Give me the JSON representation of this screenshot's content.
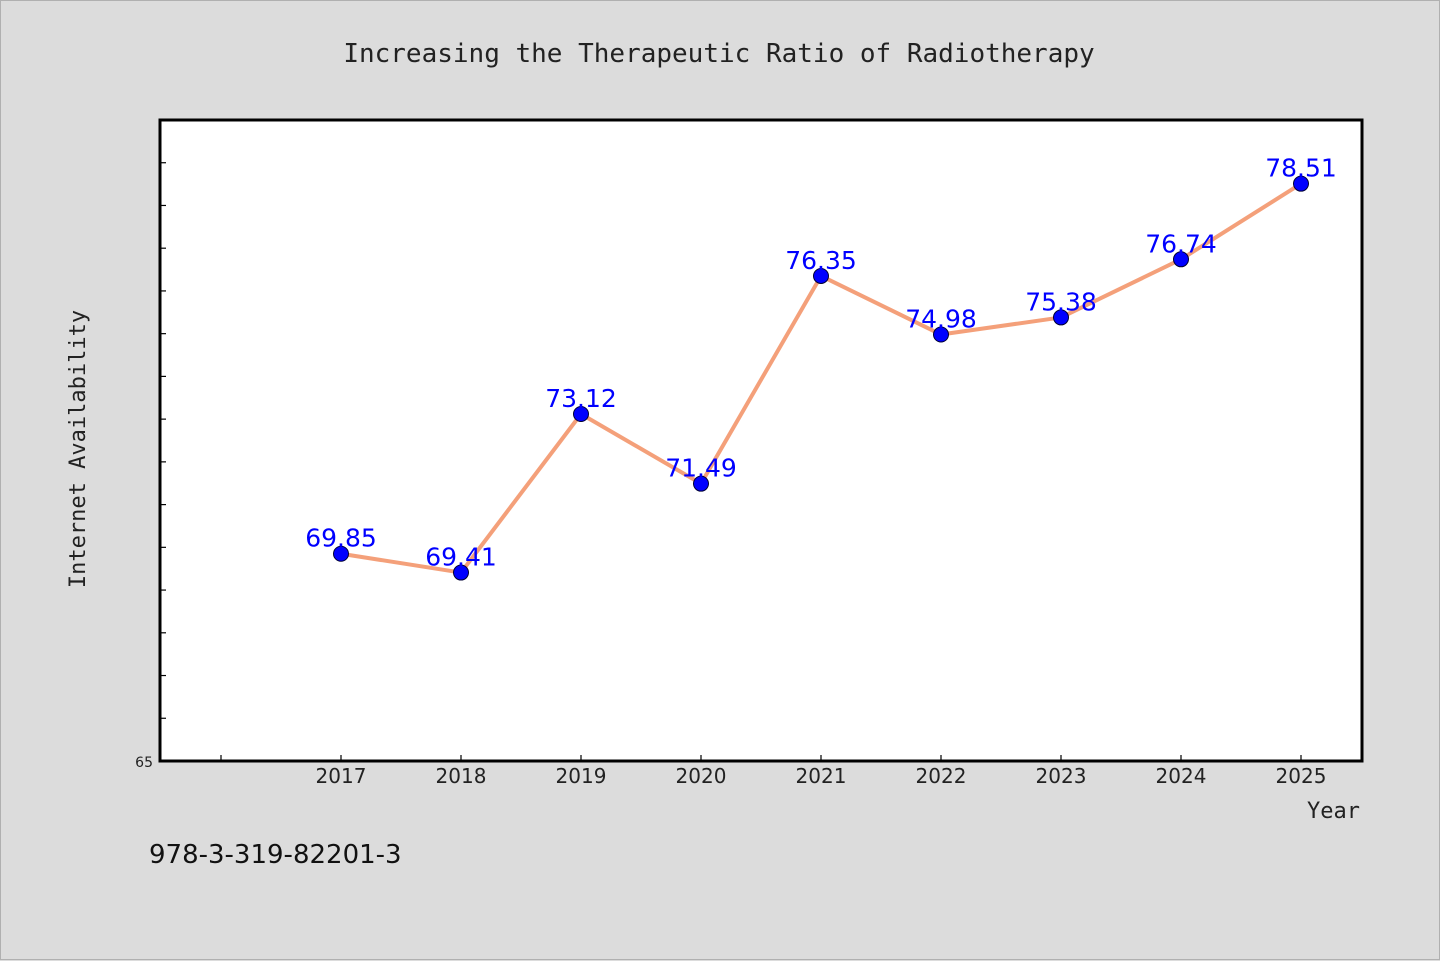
{
  "chart_data": {
    "type": "line",
    "title": "Increasing the Therapeutic Ratio of Radiotherapy",
    "xlabel": "Year",
    "ylabel": "Internet Availability",
    "categories": [
      "2017",
      "2018",
      "2019",
      "2020",
      "2021",
      "2022",
      "2023",
      "2024",
      "2025"
    ],
    "values": [
      69.85,
      69.41,
      73.12,
      71.49,
      76.35,
      74.98,
      75.38,
      76.74,
      78.51
    ],
    "data_labels": [
      "69.85",
      "69.41",
      "73.12",
      "71.49",
      "76.35",
      "74.98",
      "75.38",
      "76.74",
      "78.51"
    ],
    "ylim": [
      65,
      80
    ],
    "ytick_labels": [
      "65"
    ],
    "grid": false,
    "legend": "none",
    "colors": {
      "line": "#f4a07a",
      "marker": "#0000ff",
      "label": "#0000ff"
    }
  },
  "footer_text": "978-3-319-82201-3"
}
